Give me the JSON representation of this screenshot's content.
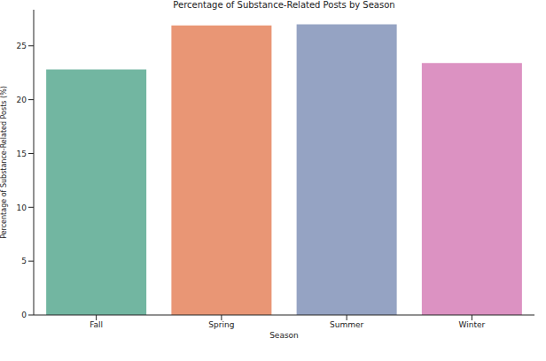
{
  "chart_data": {
    "type": "bar",
    "title": "Percentage of Substance-Related Posts by Season",
    "x_label": "Season",
    "y_label": "Percentage of Substance-Related Posts (%)",
    "categories": [
      "Fall",
      "Spring",
      "Summer",
      "Winter"
    ],
    "values": [
      22.8,
      26.9,
      27.0,
      23.4
    ],
    "colors": [
      "#72b6a1",
      "#e99675",
      "#95a3c3",
      "#dc92c2"
    ],
    "ylim": [
      0,
      28.35
    ],
    "yticks": [
      0,
      5,
      10,
      15,
      20,
      25
    ],
    "grid": false
  }
}
